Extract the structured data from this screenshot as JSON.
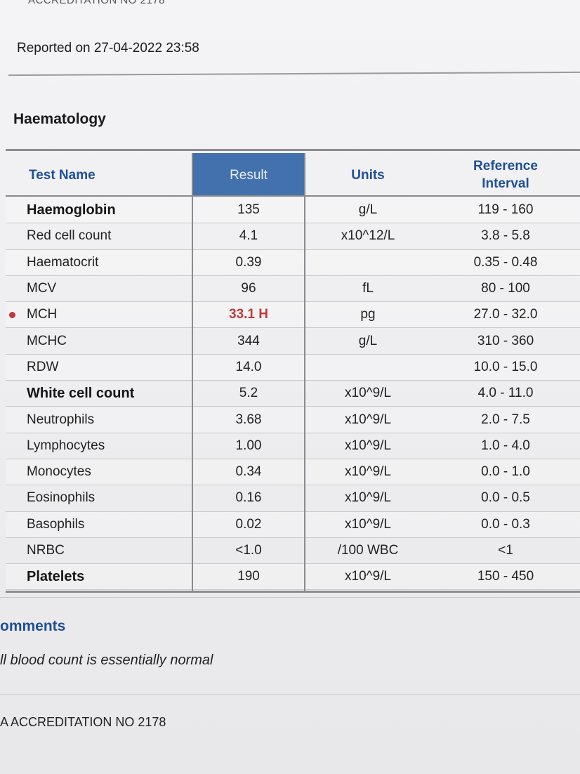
{
  "page": {
    "top_cut_text": "ACCREDITATION NO 2178",
    "reported_on": "Reported on 27-04-2022 23:58",
    "section_title": "Haematology",
    "table": {
      "headers": {
        "test_name": "Test Name",
        "result": "Result",
        "units": "Units",
        "reference_interval": "Reference\nInterval"
      },
      "rows": [
        {
          "name": "Haemoglobin",
          "result": "135",
          "units": "g/L",
          "ref": "119 - 160",
          "bold": true,
          "flag": false
        },
        {
          "name": "Red cell count",
          "result": "4.1",
          "units": "x10^12/L",
          "ref": "3.8 - 5.8",
          "bold": false,
          "flag": false
        },
        {
          "name": "Haematocrit",
          "result": "0.39",
          "units": "",
          "ref": "0.35 - 0.48",
          "bold": false,
          "flag": false
        },
        {
          "name": "MCV",
          "result": "96",
          "units": "fL",
          "ref": "80 - 100",
          "bold": false,
          "flag": false
        },
        {
          "name": "MCH",
          "result": "33.1 H",
          "units": "pg",
          "ref": "27.0 - 32.0",
          "bold": false,
          "flag": true
        },
        {
          "name": "MCHC",
          "result": "344",
          "units": "g/L",
          "ref": "310 - 360",
          "bold": false,
          "flag": false
        },
        {
          "name": "RDW",
          "result": "14.0",
          "units": "",
          "ref": "10.0 - 15.0",
          "bold": false,
          "flag": false
        },
        {
          "name": "White cell count",
          "result": "5.2",
          "units": "x10^9/L",
          "ref": "4.0 - 11.0",
          "bold": true,
          "flag": false
        },
        {
          "name": "Neutrophils",
          "result": "3.68",
          "units": "x10^9/L",
          "ref": "2.0 - 7.5",
          "bold": false,
          "flag": false
        },
        {
          "name": "Lymphocytes",
          "result": "1.00",
          "units": "x10^9/L",
          "ref": "1.0 - 4.0",
          "bold": false,
          "flag": false
        },
        {
          "name": "Monocytes",
          "result": "0.34",
          "units": "x10^9/L",
          "ref": "0.0 - 1.0",
          "bold": false,
          "flag": false
        },
        {
          "name": "Eosinophils",
          "result": "0.16",
          "units": "x10^9/L",
          "ref": "0.0 - 0.5",
          "bold": false,
          "flag": false
        },
        {
          "name": "Basophils",
          "result": "0.02",
          "units": "x10^9/L",
          "ref": "0.0 - 0.3",
          "bold": false,
          "flag": false
        },
        {
          "name": "NRBC",
          "result": "<1.0",
          "units": "/100 WBC",
          "ref": "<1",
          "bold": false,
          "flag": false
        },
        {
          "name": "Platelets",
          "result": "190",
          "units": "x10^9/L",
          "ref": "150 - 450",
          "bold": true,
          "flag": false
        }
      ]
    },
    "comments_title": "omments",
    "comments_text": "ll blood count is essentially normal",
    "accreditation": "A ACCREDITATION NO 2178",
    "colors": {
      "header_blue": "#1f4f95",
      "result_header_bg": "#4271ad",
      "flag_red": "#c0393b"
    }
  }
}
